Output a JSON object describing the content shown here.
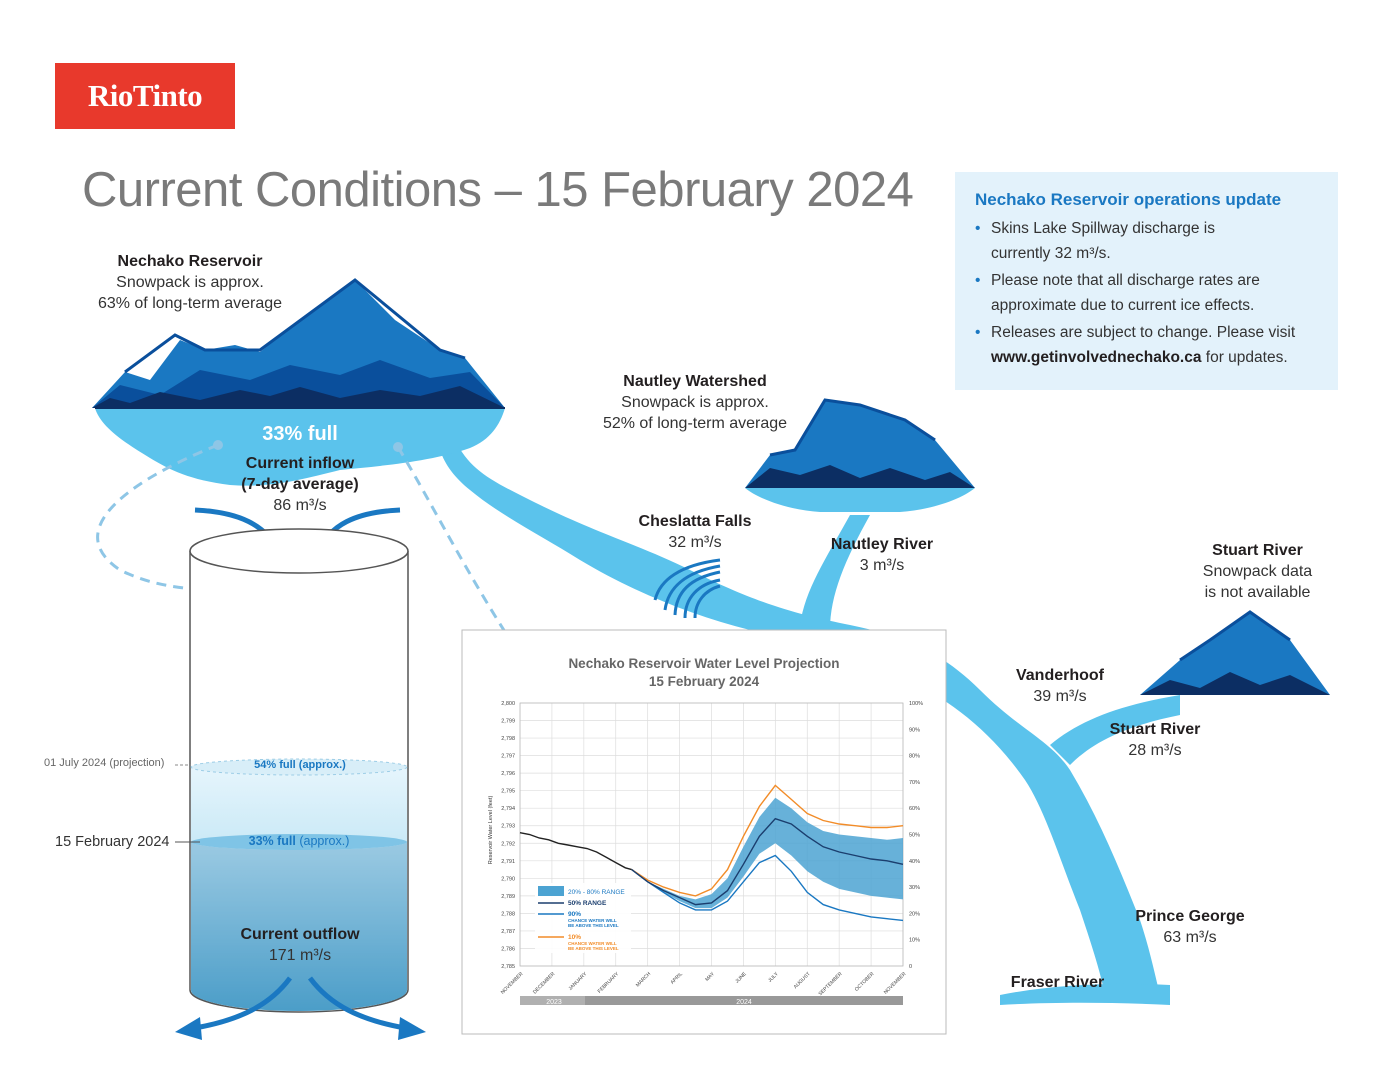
{
  "logo": "RioTinto",
  "title": "Current Conditions – 15 February 2024",
  "info": {
    "heading": "Nechako Reservoir operations update",
    "b1a": "Skins Lake Spillway discharge is",
    "b1b": "currently 32 m³/s.",
    "b2a": "Please note that all discharge rates are",
    "b2b": "approximate due to current ice effects.",
    "b3a": "Releases are subject to change. Please visit",
    "b3url": "www.getinvolvednechako.ca",
    "b3b": " for updates."
  },
  "nechako": {
    "name": "Nechako Reservoir",
    "l1": "Snowpack is approx.",
    "l2": "63% of long-term average",
    "full": "33% full"
  },
  "inflow": {
    "l1": "Current inflow",
    "l2": "(7-day average)",
    "value": "86 m³/s"
  },
  "nautley_ws": {
    "name": "Nautley Watershed",
    "l1": "Snowpack is approx.",
    "l2": "52% of long-term average"
  },
  "cheslatta": {
    "name": "Cheslatta Falls",
    "value": "32 m³/s"
  },
  "nautley_river": {
    "name": "Nautley River",
    "value": "3 m³/s"
  },
  "stuart_ws": {
    "name": "Stuart River",
    "l1": "Snowpack data",
    "l2": "is not available"
  },
  "vanderhoof": {
    "name": "Vanderhoof",
    "value": "39 m³/s"
  },
  "stuart_river": {
    "name": "Stuart River",
    "value": "28 m³/s"
  },
  "prince_george": {
    "name": "Prince George",
    "value": "63 m³/s"
  },
  "fraser": {
    "name": "Fraser River"
  },
  "cylinder": {
    "proj_date": "01 July 2024 (projection)",
    "proj_full": "54% full (approx.)",
    "cur_date": "15 February 2024",
    "cur_full_num": "33% full",
    "cur_full_txt": " (approx.)",
    "outflow_label": "Current outflow",
    "outflow_value": "171 m³/s"
  },
  "colors": {
    "river": "#5bc3ec",
    "dark_blue": "#0a4f9c",
    "navy": "#0c2e63",
    "mid_blue": "#1a78c2",
    "orange": "#f28c28",
    "band": "#4ca3d2"
  },
  "chart_data": {
    "type": "line",
    "title": "Nechako Reservoir Water Level Projection",
    "subtitle": "15 February 2024",
    "ylabel": "Reservoir Water Level (feet)",
    "xlabel": "",
    "ylim": [
      2785,
      2800
    ],
    "y2lim": [
      0,
      100
    ],
    "y_ticks": [
      "2,785",
      "2,786",
      "2,787",
      "2,788",
      "2,789",
      "2,790",
      "2,791",
      "2,792",
      "2,793",
      "2,794",
      "2,795",
      "2,796",
      "2,797",
      "2,798",
      "2,799",
      "2,800"
    ],
    "y2_ticks": [
      "0",
      "10%",
      "20%",
      "30%",
      "40%",
      "50%",
      "60%",
      "70%",
      "80%",
      "90%",
      "100%"
    ],
    "x_categories": [
      "NOVEMBER",
      "DECEMBER",
      "JANUARY",
      "FEBRUARY",
      "MARCH",
      "APRIL",
      "MAY",
      "JUNE",
      "JULY",
      "AUGUST",
      "SEPTEMBER",
      "OCTOBER",
      "NOVEMBER"
    ],
    "years": [
      "2023",
      "2024"
    ],
    "legend": [
      {
        "label": "20% - 80% RANGE"
      },
      {
        "label": "50% RANGE"
      },
      {
        "label": "90%",
        "sub1": "CHANCE WATER WILL",
        "sub2": "BE ABOVE THIS LEVEL"
      },
      {
        "label": "10%",
        "sub1": "CHANCE WATER WILL",
        "sub2": "BE ABOVE THIS LEVEL"
      }
    ],
    "series": [
      {
        "name": "Observed",
        "x": [
          0,
          0.3,
          0.6,
          0.9,
          1.2,
          1.5,
          1.8,
          2.1,
          2.4,
          2.7,
          3.0,
          3.3,
          3.5
        ],
        "values": [
          2792.6,
          2792.5,
          2792.3,
          2792.2,
          2792.0,
          2791.9,
          2791.8,
          2791.7,
          2791.5,
          2791.2,
          2790.9,
          2790.6,
          2790.5
        ]
      },
      {
        "name": "50% RANGE",
        "x": [
          3.5,
          4,
          4.5,
          5,
          5.5,
          6,
          6.5,
          7,
          7.5,
          8,
          8.5,
          9,
          9.5,
          10,
          10.5,
          11,
          11.5,
          12
        ],
        "values": [
          2790.5,
          2789.8,
          2789.3,
          2788.9,
          2788.5,
          2788.6,
          2789.3,
          2790.8,
          2792.4,
          2793.4,
          2793.1,
          2792.4,
          2791.8,
          2791.5,
          2791.3,
          2791.1,
          2791.0,
          2790.8
        ]
      },
      {
        "name": "90%",
        "x": [
          3.5,
          4,
          4.5,
          5,
          5.5,
          6,
          6.5,
          7,
          7.5,
          8,
          8.5,
          9,
          9.5,
          10,
          10.5,
          11,
          11.5,
          12
        ],
        "values": [
          2790.5,
          2789.8,
          2789.2,
          2788.6,
          2788.2,
          2788.2,
          2788.7,
          2789.8,
          2790.9,
          2791.3,
          2790.4,
          2789.2,
          2788.5,
          2788.2,
          2788.0,
          2787.8,
          2787.7,
          2787.6
        ]
      },
      {
        "name": "10%",
        "x": [
          3.5,
          4,
          4.5,
          5,
          5.5,
          6,
          6.5,
          7,
          7.5,
          8,
          8.5,
          9,
          9.5,
          10,
          10.5,
          11,
          11.5,
          12
        ],
        "values": [
          2790.5,
          2789.9,
          2789.5,
          2789.2,
          2789.0,
          2789.4,
          2790.5,
          2792.4,
          2794.1,
          2795.3,
          2794.5,
          2793.7,
          2793.3,
          2793.1,
          2793.0,
          2792.9,
          2792.9,
          2793.0
        ]
      },
      {
        "name": "20% - 80% RANGE (upper)",
        "x": [
          3.5,
          4,
          4.5,
          5,
          5.5,
          6,
          6.5,
          7,
          7.5,
          8,
          8.5,
          9,
          9.5,
          10,
          10.5,
          11,
          11.5,
          12
        ],
        "values": [
          2790.5,
          2789.8,
          2789.4,
          2789.0,
          2788.8,
          2789.1,
          2790.0,
          2791.8,
          2793.5,
          2794.6,
          2794.0,
          2793.2,
          2792.7,
          2792.5,
          2792.4,
          2792.3,
          2792.2,
          2792.3
        ]
      },
      {
        "name": "20% - 80% RANGE (lower)",
        "x": [
          3.5,
          4,
          4.5,
          5,
          5.5,
          6,
          6.5,
          7,
          7.5,
          8,
          8.5,
          9,
          9.5,
          10,
          10.5,
          11,
          11.5,
          12
        ],
        "values": [
          2790.5,
          2789.8,
          2789.2,
          2788.7,
          2788.3,
          2788.3,
          2788.9,
          2790.1,
          2791.4,
          2792.0,
          2791.3,
          2790.4,
          2789.8,
          2789.4,
          2789.2,
          2789.0,
          2788.9,
          2788.8
        ]
      }
    ]
  }
}
